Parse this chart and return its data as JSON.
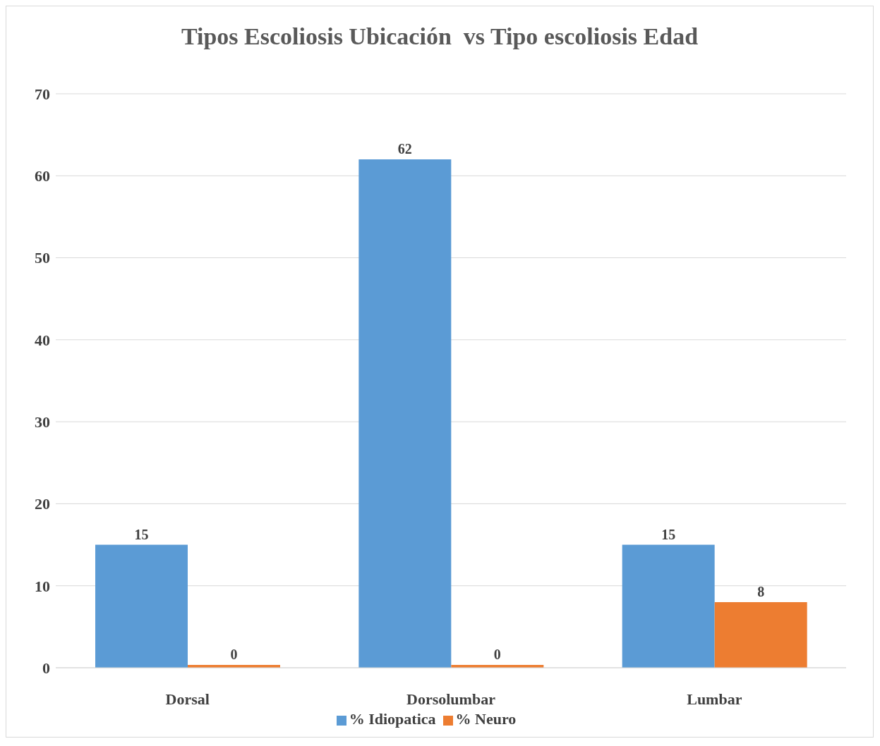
{
  "chart_data": {
    "type": "bar",
    "title": "Tipos Escoliosis Ubicación  vs Tipo escoliosis Edad",
    "categories": [
      "Dorsal",
      "Dorsolumbar",
      "Lumbar"
    ],
    "series": [
      {
        "name": "% Idiopatica",
        "color": "#5b9bd5",
        "values": [
          15,
          62,
          15
        ]
      },
      {
        "name": "% Neuro",
        "color": "#ed7d31",
        "values": [
          0,
          0,
          8
        ]
      }
    ],
    "ylim": [
      0,
      70
    ],
    "yticks": [
      0,
      10,
      20,
      30,
      40,
      50,
      60,
      70
    ],
    "grid": "y",
    "legend": "bottom",
    "data_labels": true
  }
}
